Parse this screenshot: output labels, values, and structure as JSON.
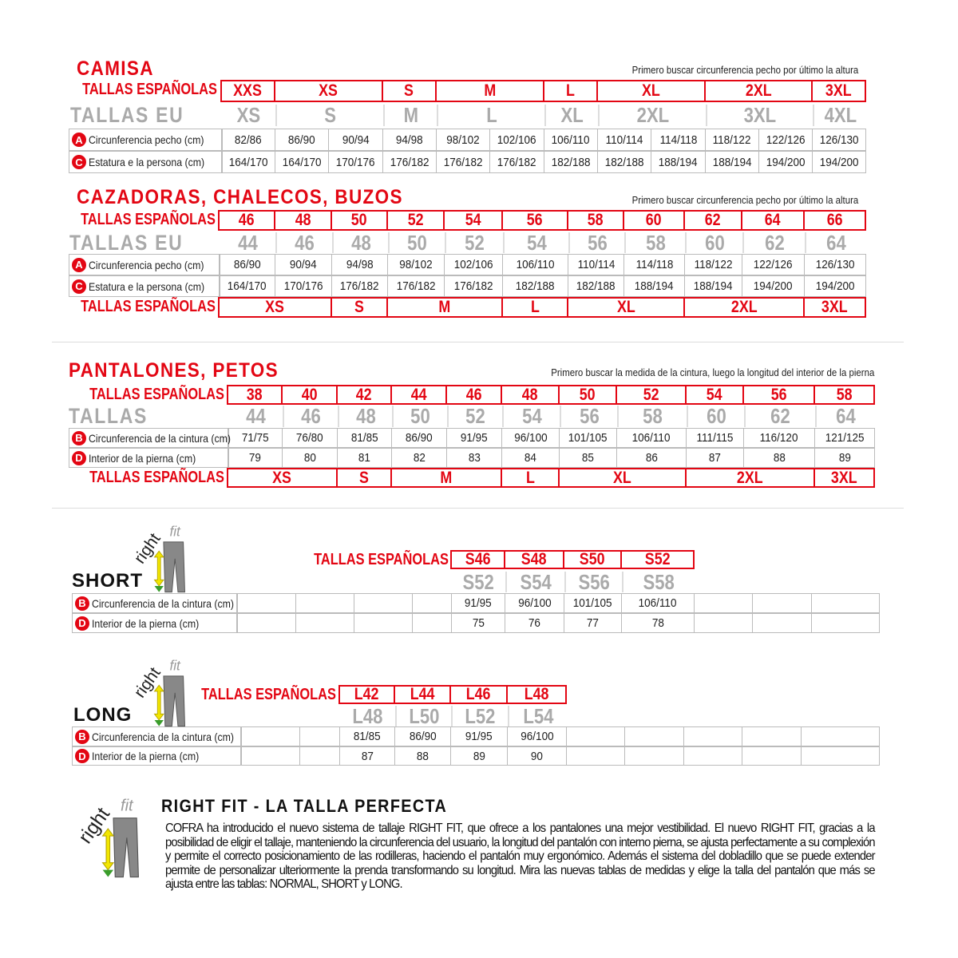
{
  "colors": {
    "accent": "#e30613",
    "eu_gray": "#aaaaaa",
    "border": "#bbbbbb"
  },
  "camisa": {
    "title": "CAMISA",
    "note": "Primero buscar circunferencia pecho por último la altura",
    "es_label": "TALLAS ESPAÑOLAS",
    "es_sizes": [
      "XXS",
      "XS",
      "S",
      "M",
      "L",
      "XL",
      "2XL",
      "3XL"
    ],
    "eu_label": "TALLAS EU",
    "eu_sizes": [
      "XS",
      "S",
      "M",
      "L",
      "XL",
      "2XL",
      "3XL",
      "4XL"
    ],
    "rows": [
      {
        "letter": "A",
        "label": "Circunferencia pecho (cm)",
        "values": [
          "82/86",
          "86/90",
          "90/94",
          "94/98",
          "98/102",
          "102/106",
          "106/110",
          "110/114",
          "114/118",
          "118/122",
          "122/126",
          "126/130"
        ]
      },
      {
        "letter": "C",
        "label": "Estatura e la persona (cm)",
        "values": [
          "164/170",
          "164/170",
          "170/176",
          "176/182",
          "176/182",
          "176/182",
          "182/188",
          "182/188",
          "188/194",
          "188/194",
          "194/200",
          "194/200"
        ]
      }
    ]
  },
  "cazadoras": {
    "title": "CAZADORAS, CHALECOS, BUZOS",
    "note": "Primero buscar circunferencia pecho por último la altura",
    "es_label": "TALLAS ESPAÑOLAS",
    "es_sizes": [
      "46",
      "48",
      "50",
      "52",
      "54",
      "56",
      "58",
      "60",
      "62",
      "64",
      "66"
    ],
    "eu_label": "TALLAS EU",
    "eu_sizes": [
      "44",
      "46",
      "48",
      "50",
      "52",
      "54",
      "56",
      "58",
      "60",
      "62",
      "64"
    ],
    "rows": [
      {
        "letter": "A",
        "label": "Circunferencia pecho (cm)",
        "values": [
          "86/90",
          "90/94",
          "94/98",
          "98/102",
          "102/106",
          "106/110",
          "110/114",
          "114/118",
          "118/122",
          "122/126",
          "126/130"
        ]
      },
      {
        "letter": "C",
        "label": "Estatura e la persona (cm)",
        "values": [
          "164/170",
          "170/176",
          "176/182",
          "176/182",
          "176/182",
          "182/188",
          "182/188",
          "188/194",
          "188/194",
          "194/200",
          "194/200"
        ]
      }
    ],
    "es_label_2": "TALLAS ESPAÑOLAS",
    "letter_sizes": [
      "XS",
      "S",
      "M",
      "L",
      "XL",
      "2XL",
      "3XL"
    ]
  },
  "pantalones": {
    "title": "PANTALONES, PETOS",
    "note": "Primero buscar la medida de la cintura, luego la longitud del interior de la pierna",
    "es_label": "TALLAS ESPAÑOLAS",
    "es_sizes": [
      "38",
      "40",
      "42",
      "44",
      "46",
      "48",
      "50",
      "52",
      "54",
      "56",
      "58"
    ],
    "eu_label": "TALLAS",
    "eu_sizes": [
      "44",
      "46",
      "48",
      "50",
      "52",
      "54",
      "56",
      "58",
      "60",
      "62",
      "64"
    ],
    "rows": [
      {
        "letter": "B",
        "label": "Circunferencia de la cintura (cm)",
        "values": [
          "71/75",
          "76/80",
          "81/85",
          "86/90",
          "91/95",
          "96/100",
          "101/105",
          "106/110",
          "111/115",
          "116/120",
          "121/125"
        ]
      },
      {
        "letter": "D",
        "label": "Interior de la pierna (cm)",
        "values": [
          "79",
          "80",
          "81",
          "82",
          "83",
          "84",
          "85",
          "86",
          "87",
          "88",
          "89"
        ]
      }
    ],
    "es_label_2": "TALLAS ESPAÑOLAS",
    "letter_sizes": [
      "XS",
      "S",
      "M",
      "L",
      "XL",
      "2XL",
      "3XL"
    ]
  },
  "short": {
    "name": "SHORT",
    "logo_text": "rightfit",
    "es_label": "TALLAS ESPAÑOLAS",
    "es_sizes": [
      "S46",
      "S48",
      "S50",
      "S52"
    ],
    "eu_sizes": [
      "S52",
      "S54",
      "S56",
      "S58"
    ],
    "rows": [
      {
        "letter": "B",
        "label": "Circunferencia de la cintura (cm)",
        "values": [
          "91/95",
          "96/100",
          "101/105",
          "106/110"
        ]
      },
      {
        "letter": "D",
        "label": "Interior de la pierna (cm)",
        "values": [
          "75",
          "76",
          "77",
          "78"
        ]
      }
    ]
  },
  "long": {
    "name": "LONG",
    "logo_text": "rightfit",
    "es_label": "TALLAS ESPAÑOLAS",
    "es_sizes": [
      "L42",
      "L44",
      "L46",
      "L48"
    ],
    "eu_sizes": [
      "L48",
      "L50",
      "L52",
      "L54"
    ],
    "rows": [
      {
        "letter": "B",
        "label": "Circunferencia de la cintura (cm)",
        "values": [
          "81/85",
          "86/90",
          "91/95",
          "96/100"
        ]
      },
      {
        "letter": "D",
        "label": "Interior de la pierna (cm)",
        "values": [
          "87",
          "88",
          "89",
          "90"
        ]
      }
    ]
  },
  "rightfit": {
    "logo_text": "rightfit",
    "title": "RIGHT FIT - LA TALLA PERFECTA",
    "text": "COFRA ha introducido el nuevo sistema de tallaje RIGHT FIT, que ofrece a los pantalones una mejor vestibilidad. El nuevo RIGHT FIT, gracias a la posibilidad de eligir el tallaje, manteniendo la circunferencia del usuario, la longitud del pantalón con interno pierna, se ajusta perfectamente a su complexión y permite el correcto posicionamiento de las rodilleras, haciendo el pantalón muy ergonómico. Además el sistema del dobladillo que se puede extender permite de personalizar ulteriormente la prenda transformando su longitud. Mira las nuevas tablas de medidas y elige la talla del pantalón que más se ajusta entre las tablas: NORMAL, SHORT y LONG."
  }
}
